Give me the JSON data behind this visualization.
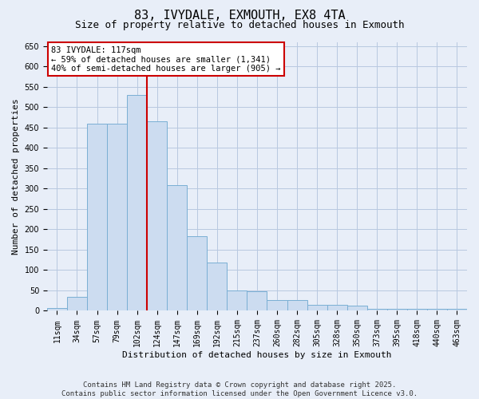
{
  "title": "83, IVYDALE, EXMOUTH, EX8 4TA",
  "subtitle": "Size of property relative to detached houses in Exmouth",
  "xlabel": "Distribution of detached houses by size in Exmouth",
  "ylabel": "Number of detached properties",
  "categories": [
    "11sqm",
    "34sqm",
    "57sqm",
    "79sqm",
    "102sqm",
    "124sqm",
    "147sqm",
    "169sqm",
    "192sqm",
    "215sqm",
    "237sqm",
    "260sqm",
    "282sqm",
    "305sqm",
    "328sqm",
    "350sqm",
    "373sqm",
    "395sqm",
    "418sqm",
    "440sqm",
    "463sqm"
  ],
  "bar_values": [
    7,
    35,
    460,
    460,
    530,
    465,
    308,
    183,
    118,
    50,
    48,
    26,
    26,
    15,
    14,
    12,
    5,
    5,
    5,
    5,
    5
  ],
  "bar_color": "#ccdcf0",
  "bar_edge_color": "#7aafd4",
  "vline_x": 4.5,
  "vline_color": "#cc0000",
  "annotation_text": "83 IVYDALE: 117sqm\n← 59% of detached houses are smaller (1,341)\n40% of semi-detached houses are larger (905) →",
  "annotation_box_color": "#ffffff",
  "annotation_box_edge": "#cc0000",
  "ylim_max": 660,
  "yticks": [
    0,
    50,
    100,
    150,
    200,
    250,
    300,
    350,
    400,
    450,
    500,
    550,
    600,
    650
  ],
  "background_color": "#e8eef8",
  "grid_color": "#b8c8e0",
  "footer_line1": "Contains HM Land Registry data © Crown copyright and database right 2025.",
  "footer_line2": "Contains public sector information licensed under the Open Government Licence v3.0.",
  "title_fontsize": 11,
  "subtitle_fontsize": 9,
  "ylabel_fontsize": 8,
  "xlabel_fontsize": 8,
  "tick_fontsize": 7,
  "annotation_fontsize": 7.5,
  "footer_fontsize": 6.5
}
